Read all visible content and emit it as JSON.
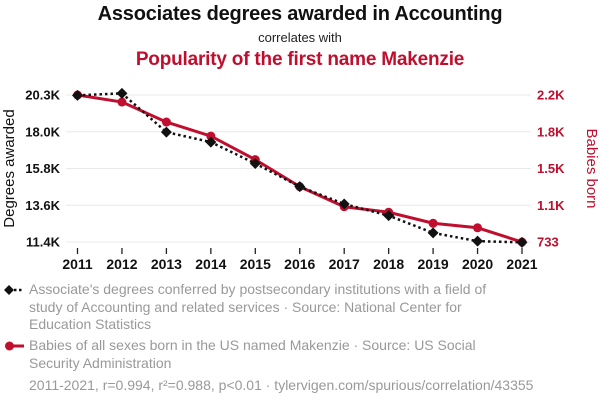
{
  "header": {
    "title": "Associates degrees awarded in Accounting",
    "connector": "correlates with",
    "subtitle": "Popularity of the first name Makenzie"
  },
  "colors": {
    "series_degrees": "#111111",
    "series_babies": "#c00f2e",
    "grid": "#e9e9e9",
    "axis_text": "#111111",
    "right_axis_text": "#c00f2e",
    "legend_text": "#999999"
  },
  "chart_data": {
    "type": "line",
    "x": [
      2011,
      2012,
      2013,
      2014,
      2015,
      2016,
      2017,
      2018,
      2019,
      2020,
      2021
    ],
    "series": [
      {
        "name": "Associate's degrees awarded in Accounting",
        "axis": "left",
        "style": "dotted",
        "marker": "diamond",
        "color": "#111111",
        "values": [
          20280,
          20400,
          18050,
          17450,
          16150,
          14750,
          13700,
          13000,
          11950,
          11450,
          11380
        ]
      },
      {
        "name": "Babies born in the US named Makenzie",
        "axis": "right",
        "style": "solid",
        "marker": "circle",
        "color": "#c00f2e",
        "values": [
          2200,
          2130,
          1930,
          1790,
          1555,
          1285,
          1085,
          1030,
          920,
          875,
          733
        ]
      }
    ],
    "left_axis": {
      "label": "Degrees awarded",
      "min": 11400,
      "max": 20300,
      "tick_labels": [
        "20.3K",
        "18.0K",
        "15.8K",
        "13.6K",
        "11.4K"
      ]
    },
    "right_axis": {
      "label": "Babies born",
      "min": 733,
      "max": 2200,
      "tick_labels": [
        "2.2K",
        "1.8K",
        "1.5K",
        "1.1K",
        "733"
      ]
    },
    "x_tick_labels": [
      "2011",
      "2012",
      "2013",
      "2014",
      "2015",
      "2016",
      "2017",
      "2018",
      "2019",
      "2020",
      "2021"
    ],
    "grid": true,
    "legend_position": "bottom"
  },
  "legend": {
    "item1": {
      "label": "Associate's degrees conferred by postsecondary institutions with a field of study of Accounting and related services · Source: National Center for Education Statistics"
    },
    "item2": {
      "label": "Babies of all sexes born in the US named Makenzie · Source: US Social Security Administration"
    }
  },
  "footer": {
    "stats": "2011-2021, r=0.994, r²=0.988, p<0.01 · tylervigen.com/spurious/correlation/43355"
  }
}
